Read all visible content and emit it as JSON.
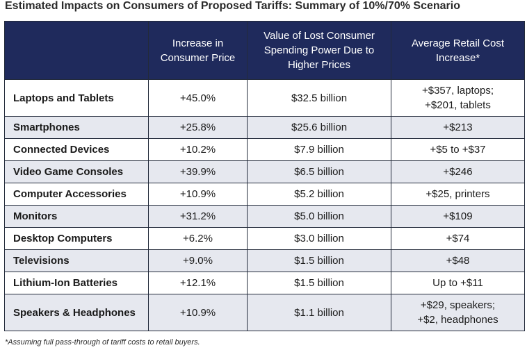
{
  "title": "Estimated Impacts on Consumers of Proposed Tariffs: Summary of 10%/70% Scenario",
  "table": {
    "headers": [
      "",
      "Increase in Consumer Price",
      "Value of Lost Consumer Spending Power Due to Higher Prices",
      "Average Retail Cost Increase*"
    ],
    "rows": [
      {
        "category": "Laptops and Tablets",
        "increase": "+45.0%",
        "lost_value": "$32.5 billion",
        "retail_increase": [
          "+$357, laptops;",
          "+$201, tablets"
        ]
      },
      {
        "category": "Smartphones",
        "increase": "+25.8%",
        "lost_value": "$25.6 billion",
        "retail_increase": [
          "+$213"
        ]
      },
      {
        "category": "Connected Devices",
        "increase": "+10.2%",
        "lost_value": "$7.9 billion",
        "retail_increase": [
          "+$5 to +$37"
        ]
      },
      {
        "category": "Video Game Consoles",
        "increase": "+39.9%",
        "lost_value": "$6.5 billion",
        "retail_increase": [
          "+$246"
        ]
      },
      {
        "category": "Computer Accessories",
        "increase": "+10.9%",
        "lost_value": "$5.2 billion",
        "retail_increase": [
          "+$25, printers"
        ]
      },
      {
        "category": "Monitors",
        "increase": "+31.2%",
        "lost_value": "$5.0 billion",
        "retail_increase": [
          "+$109"
        ]
      },
      {
        "category": "Desktop Computers",
        "increase": "+6.2%",
        "lost_value": "$3.0 billion",
        "retail_increase": [
          "+$74"
        ]
      },
      {
        "category": "Televisions",
        "increase": "+9.0%",
        "lost_value": "$1.5 billion",
        "retail_increase": [
          "+$48"
        ]
      },
      {
        "category": "Lithium-Ion Batteries",
        "increase": "+12.1%",
        "lost_value": "$1.5 billion",
        "retail_increase": [
          "Up to +$11"
        ]
      },
      {
        "category": "Speakers & Headphones",
        "increase": "+10.9%",
        "lost_value": "$1.1 billion",
        "retail_increase": [
          "+$29, speakers;",
          "+$2, headphones"
        ]
      }
    ]
  },
  "footnote": "*Assuming full pass-through of tariff costs to retail buyers.",
  "colors": {
    "header_bg": "#1f2a5c",
    "shaded_row": "#e6e8ef"
  }
}
